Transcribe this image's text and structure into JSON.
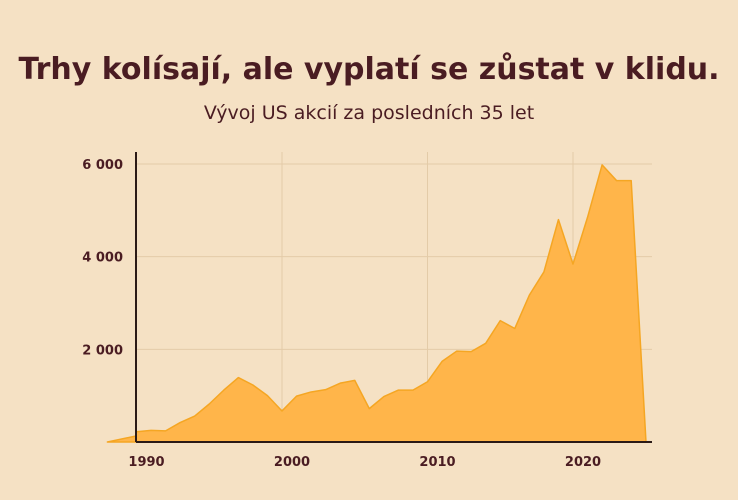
{
  "chart_data": {
    "type": "area",
    "title": "Trhy kolísají, ale vyplatí se zůstat v klidu.",
    "subtitle": "Vývoj US akcií za posledních 35 let",
    "xlabel": "",
    "ylabel": "",
    "xlim": [
      1988,
      2024
    ],
    "ylim": [
      0,
      6200
    ],
    "x_ticks": [
      1990,
      2000,
      2010,
      2020
    ],
    "x_tick_labels": [
      "1990",
      "2000",
      "2010",
      "2020"
    ],
    "y_ticks": [
      2000,
      4000,
      6000
    ],
    "y_tick_labels": [
      "2 000",
      "4 000",
      "6 000"
    ],
    "grid": true,
    "legend": "none",
    "series": [
      {
        "x": [
          1988,
          1989,
          1990,
          1991,
          1992,
          1993,
          1994,
          1995,
          1996,
          1997,
          1998,
          1999,
          2000,
          2001,
          2002,
          2003,
          2004,
          2005,
          2006,
          2007,
          2008,
          2009,
          2010,
          2011,
          2012,
          2013,
          2014,
          2015,
          2016,
          2017,
          2018,
          2019,
          2020,
          2021,
          2022,
          2023,
          2024
        ],
        "values": [
          130,
          270,
          220,
          250,
          240,
          420,
          560,
          820,
          1120,
          1390,
          1230,
          1000,
          670,
          990,
          1080,
          1130,
          1270,
          1330,
          720,
          980,
          1120,
          1120,
          1300,
          1740,
          1960,
          1950,
          2130,
          2620,
          2450,
          3170,
          3670,
          4800,
          3840,
          4850,
          5980,
          5640,
          5640
        ]
      }
    ],
    "colors": {
      "area": "#ffb54a",
      "line": "#f5a623",
      "grid": "#e3cba8",
      "axis": "#2b1a16",
      "text": "#4a1c22",
      "background": "#f5e1c4"
    }
  }
}
